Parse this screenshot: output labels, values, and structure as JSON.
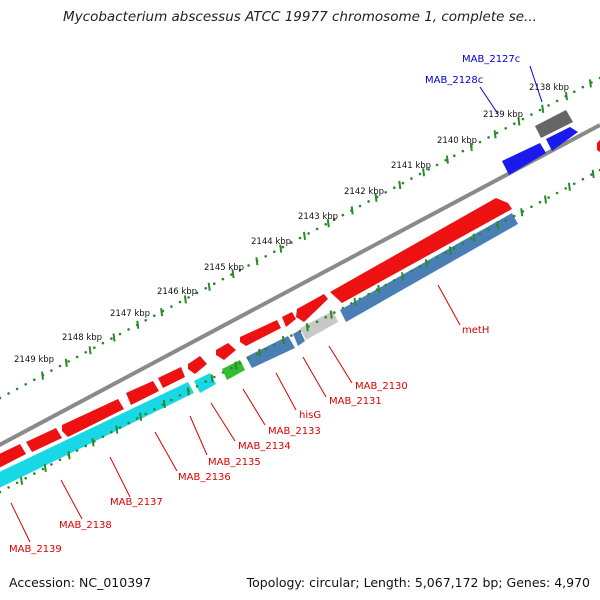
{
  "title": "Mycobacterium abscessus ATCC 19977 chromosome 1, complete se...",
  "footer": {
    "accession": "Accession: NC_010397",
    "summary": "Topology: circular; Length: 5,067,172 bp; Genes: 4,970"
  },
  "colors": {
    "forward_gene": "#ee1111",
    "reverse_gene": "#4a7fb5",
    "reverse_cyan": "#19d8e6",
    "highlight_gene": "#1a1aee",
    "rna": "#33bb33",
    "pseudo_light": "#c8c8c8",
    "pseudo_dark": "#666666",
    "backbone": "#888888",
    "ticks": "#2a8a2a",
    "label_red": "#dd0000",
    "label_blue": "#0000cc"
  },
  "scale_ticks_kbp": [
    {
      "pos": 2138,
      "label": "2138 kbp"
    },
    {
      "pos": 2139,
      "label": "2139 kbp"
    },
    {
      "pos": 2140,
      "label": "2140 kbp"
    },
    {
      "pos": 2141,
      "label": "2141 kbp"
    },
    {
      "pos": 2142,
      "label": "2142 kbp"
    },
    {
      "pos": 2143,
      "label": "2143 kbp"
    },
    {
      "pos": 2144,
      "label": "2144 kbp"
    },
    {
      "pos": 2145,
      "label": "2145 kbp"
    },
    {
      "pos": 2146,
      "label": "2146 kbp"
    },
    {
      "pos": 2147,
      "label": "2147 kbp"
    },
    {
      "pos": 2148,
      "label": "2148 kbp"
    },
    {
      "pos": 2149,
      "label": "2149 kbp"
    }
  ],
  "gene_labels": [
    {
      "name": "MAB_2127c",
      "color": "blue"
    },
    {
      "name": "MAB_2128c",
      "color": "blue"
    },
    {
      "name": "metH",
      "color": "red"
    },
    {
      "name": "MAB_2130",
      "color": "red"
    },
    {
      "name": "MAB_2131",
      "color": "red"
    },
    {
      "name": "hisG",
      "color": "red"
    },
    {
      "name": "MAB_2133",
      "color": "red"
    },
    {
      "name": "MAB_2134",
      "color": "red"
    },
    {
      "name": "MAB_2135",
      "color": "red"
    },
    {
      "name": "MAB_2136",
      "color": "red"
    },
    {
      "name": "MAB_2137",
      "color": "red"
    },
    {
      "name": "MAB_2138",
      "color": "red"
    },
    {
      "name": "MAB_2139",
      "color": "red"
    }
  ]
}
